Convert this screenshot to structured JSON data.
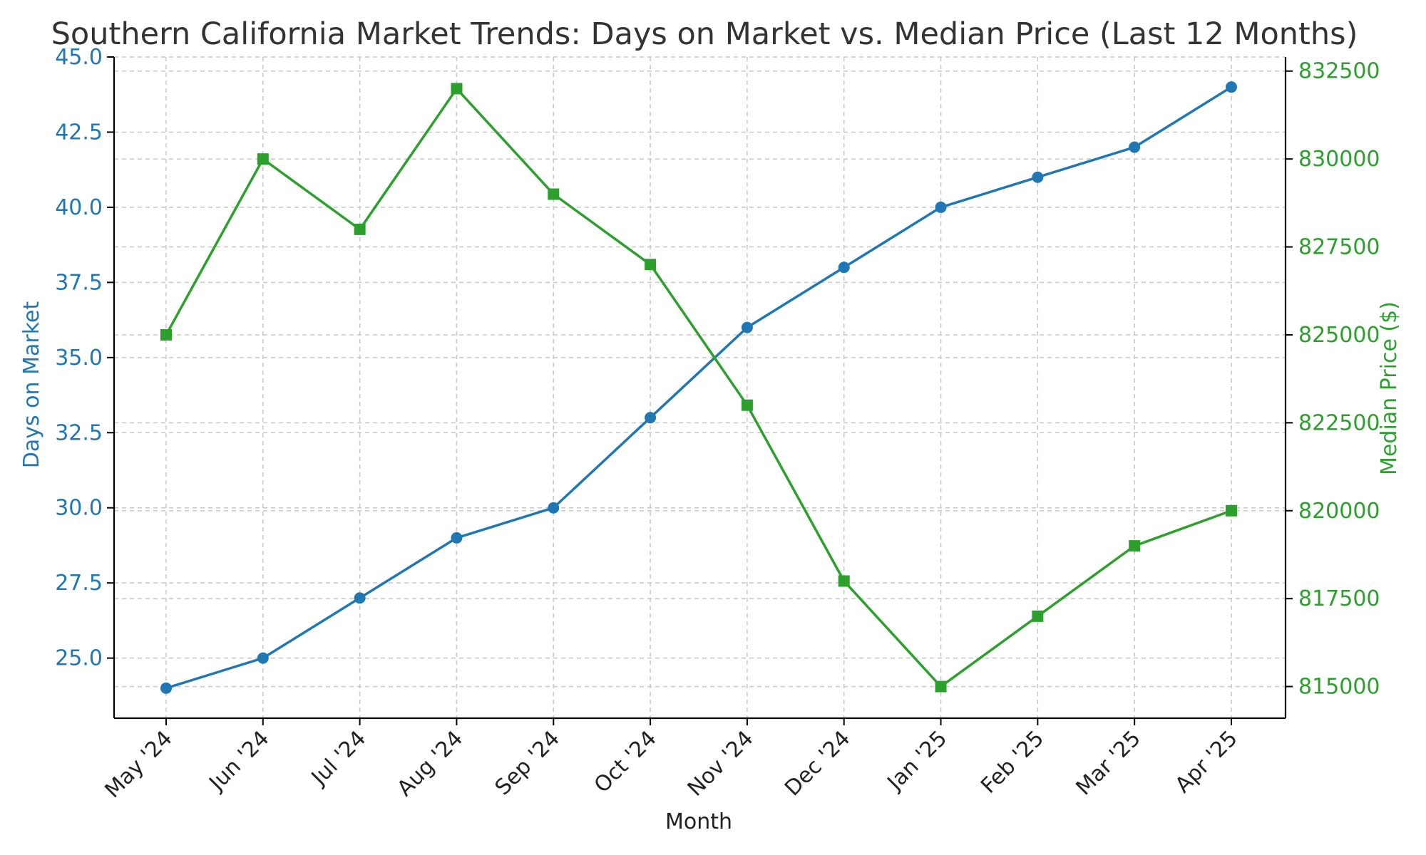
{
  "chart_data": {
    "type": "line",
    "title": "Southern California Market Trends: Days on Market vs. Median Price (Last 12 Months)",
    "xlabel": "Month",
    "ylabel_left": "Days on Market",
    "ylabel_right": "Median Price ($)",
    "categories": [
      "May '24",
      "Jun '24",
      "Jul '24",
      "Aug '24",
      "Sep '24",
      "Oct '24",
      "Nov '24",
      "Dec '24",
      "Jan '25",
      "Feb '25",
      "Mar '25",
      "Apr '25"
    ],
    "series": [
      {
        "axis": "left",
        "color": "#1f77b4",
        "marker": "circle",
        "values": [
          24,
          25,
          27,
          29,
          30,
          33,
          36,
          38,
          40,
          41,
          42,
          44
        ]
      },
      {
        "axis": "right",
        "color": "#2ca02c",
        "marker": "square",
        "values": [
          825000,
          830000,
          828000,
          832000,
          829000,
          827000,
          823000,
          818000,
          815000,
          817000,
          819000,
          820000
        ]
      }
    ],
    "ylim_left": [
      23,
      45
    ],
    "yticks_left": [
      "25.0",
      "27.5",
      "30.0",
      "32.5",
      "35.0",
      "37.5",
      "40.0",
      "42.5",
      "45.0"
    ],
    "ylim_right": [
      814100,
      832900
    ],
    "yticks_right": [
      "815000",
      "817500",
      "820000",
      "822500",
      "825000",
      "827500",
      "830000",
      "832500"
    ],
    "grid": true,
    "legend": "none"
  }
}
